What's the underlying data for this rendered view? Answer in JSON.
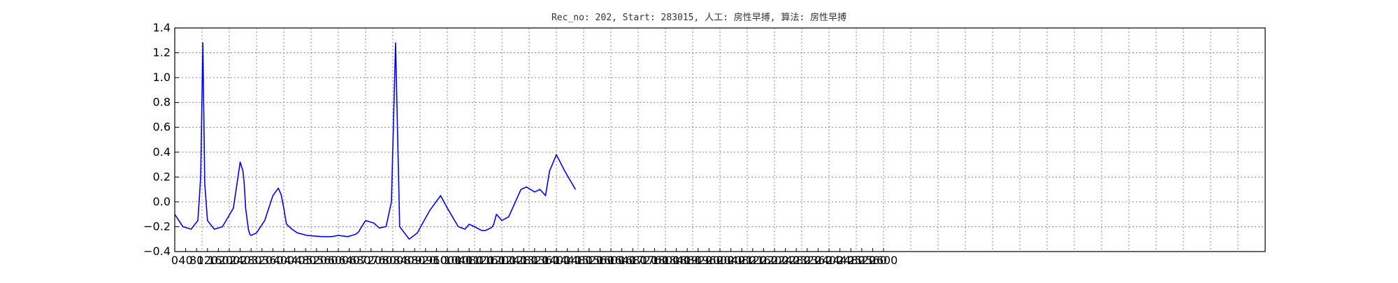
{
  "chart_data": {
    "type": "line",
    "title": "Rec_no: 202, Start: 283015, 人工: 房性早搏, 算法: 房性早搏",
    "xlabel": "",
    "ylabel": "",
    "xlim": [
      0,
      4000
    ],
    "ylim": [
      -0.4,
      1.4
    ],
    "grid": true,
    "y_ticks": [
      -0.4,
      -0.2,
      0.0,
      0.2,
      0.4,
      0.6,
      0.8,
      1.0,
      1.2,
      1.4
    ],
    "y_tick_labels": [
      "−0.4",
      "−0.2",
      "0.0",
      "0.2",
      "0.4",
      "0.6",
      "0.8",
      "1.0",
      "1.2",
      "1.4"
    ],
    "x_ticks": [
      0,
      40,
      80,
      120,
      160,
      200,
      240,
      280,
      320,
      360,
      400,
      440,
      480,
      520,
      560,
      600,
      640,
      680,
      720,
      760,
      800,
      840,
      880,
      920,
      960,
      1000,
      1040,
      1080,
      1120,
      1160,
      1200,
      1240,
      1280,
      1320,
      1360,
      1400,
      1440,
      1480,
      1520,
      1560,
      1600,
      1640,
      1680,
      1720,
      1760,
      1800,
      1840,
      1880,
      1920,
      1960,
      2000,
      2040,
      2080,
      2120,
      2160,
      2200,
      2240,
      2280,
      2320,
      2360,
      2400,
      2440,
      2480,
      2520,
      2560,
      2600
    ],
    "x_tick_labels": [
      "0",
      "40",
      "80",
      "120",
      "160",
      "200",
      "240",
      "280",
      "320",
      "360",
      "400",
      "440",
      "480",
      "520",
      "560",
      "600",
      "640",
      "680",
      "720",
      "760",
      "800",
      "840",
      "880",
      "920",
      "960",
      "1000",
      "1040",
      "1080",
      "1120",
      "1160",
      "1200",
      "1240",
      "1280",
      "1320",
      "1360",
      "1400",
      "1440",
      "1480",
      "1520",
      "1560",
      "1600",
      "1640",
      "1680",
      "1720",
      "1760",
      "1800",
      "1840",
      "1880",
      "1920",
      "1960",
      "2000",
      "2040",
      "2080",
      "2120",
      "2160",
      "2200",
      "2240",
      "2280",
      "2320",
      "2360",
      "2400",
      "2440",
      "2480",
      "2520",
      "2560",
      "2600"
    ],
    "x_grid_step": 100,
    "colors": {
      "normal": "#0000ff",
      "highlight": "#ff0000",
      "grid": "#888888",
      "axes": "#000000"
    },
    "series": [
      {
        "color": "#0000ff",
        "x": [
          0,
          30,
          60,
          85,
          95,
          103,
          110,
          120,
          145,
          175,
          215,
          240,
          250,
          255,
          260,
          270,
          275,
          280,
          300,
          330,
          360,
          380,
          390,
          400,
          405,
          410,
          430,
          450,
          485,
          540,
          575,
          600,
          635,
          650,
          665,
          670,
          675,
          680,
          700,
          730,
          750,
          775,
          795,
          810,
          825,
          860,
          890,
          935,
          975,
          1000,
          1040,
          1065,
          1080,
          1100,
          1125,
          1140,
          1150,
          1160,
          1165,
          1170,
          1180,
          1200,
          1225,
          1270
        ],
        "y": [
          -0.1,
          -0.2,
          -0.22,
          -0.15,
          0.2,
          1.28,
          0.15,
          -0.15,
          -0.22,
          -0.2,
          -0.05,
          0.32,
          0.25,
          0.15,
          -0.05,
          -0.22,
          -0.26,
          -0.27,
          -0.25,
          -0.15,
          0.05,
          0.11,
          0.06,
          -0.05,
          -0.12,
          -0.18,
          -0.22,
          -0.25,
          -0.27,
          -0.28,
          -0.28,
          -0.27,
          -0.28,
          -0.27,
          -0.26,
          -0.25,
          -0.24,
          -0.22,
          -0.15,
          -0.17,
          -0.21,
          -0.2,
          0.0,
          1.28,
          -0.2,
          -0.3,
          -0.25,
          -0.07,
          0.05,
          -0.05,
          -0.2,
          -0.22,
          -0.18,
          -0.2,
          -0.23,
          -0.23,
          -0.22,
          -0.21,
          -0.2,
          -0.18,
          -0.1,
          -0.15,
          -0.12,
          0.1
        ]
      },
      {
        "color": "#0000ff",
        "x": [
          1270,
          1290,
          1320,
          1340,
          1360,
          1375,
          1385,
          1400,
          1430,
          1470
        ],
        "y": [
          0.1,
          0.12,
          0.08,
          0.1,
          0.05,
          0.25,
          0.3,
          0.38,
          0.25,
          0.1
        ]
      }
    ]
  }
}
